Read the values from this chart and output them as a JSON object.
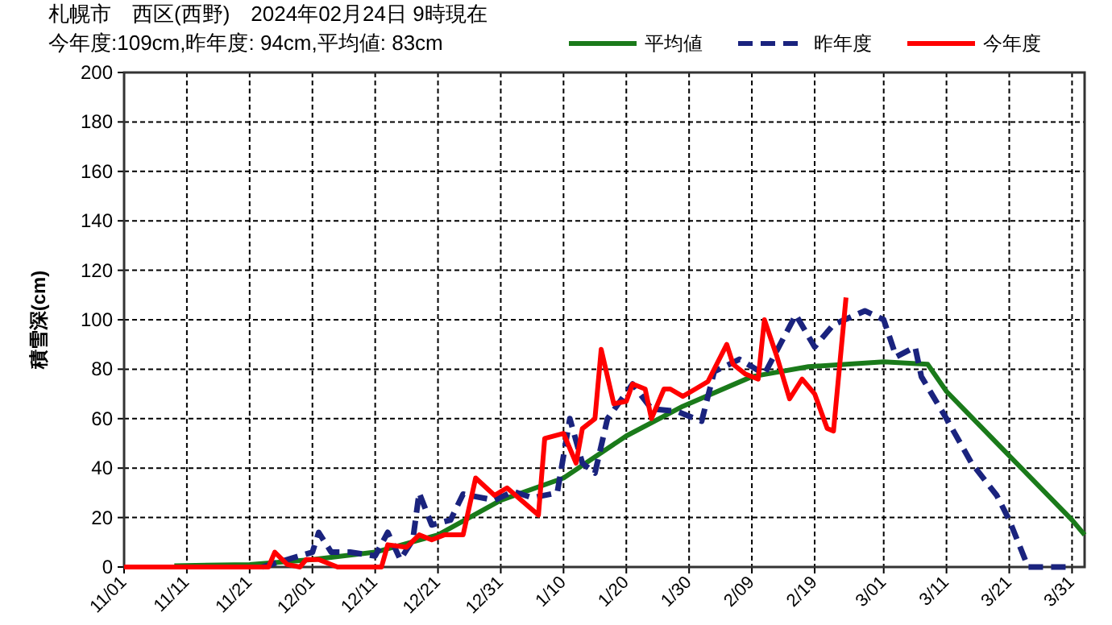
{
  "chart_data": {
    "type": "line",
    "title": "札幌市　西区(西野)　2024年02月24日 9時現在",
    "subtitle": "今年度:109cm,昨年度: 94cm,平均値: 83cm",
    "ylabel": "積雪深(cm)",
    "xlim": [
      "2023-11-01",
      "2024-04-02"
    ],
    "ylim": [
      0,
      200
    ],
    "xticks": [
      {
        "value": "2023-11-01",
        "label": "11/01"
      },
      {
        "value": "2023-11-11",
        "label": "11/11"
      },
      {
        "value": "2023-11-21",
        "label": "11/21"
      },
      {
        "value": "2023-12-01",
        "label": "12/01"
      },
      {
        "value": "2023-12-11",
        "label": "12/11"
      },
      {
        "value": "2023-12-21",
        "label": "12/21"
      },
      {
        "value": "2023-12-31",
        "label": "12/31"
      },
      {
        "value": "2024-01-10",
        "label": "1/10"
      },
      {
        "value": "2024-01-20",
        "label": "1/20"
      },
      {
        "value": "2024-01-30",
        "label": "1/30"
      },
      {
        "value": "2024-02-09",
        "label": "2/09"
      },
      {
        "value": "2024-02-19",
        "label": "2/19"
      },
      {
        "value": "2024-03-01",
        "label": "3/01"
      },
      {
        "value": "2024-03-11",
        "label": "3/11"
      },
      {
        "value": "2024-03-21",
        "label": "3/21"
      },
      {
        "value": "2024-03-31",
        "label": "3/31"
      }
    ],
    "yticks": [
      0,
      20,
      40,
      60,
      80,
      100,
      120,
      140,
      160,
      180,
      200
    ],
    "grid": true,
    "legend": "top right",
    "marker": "none",
    "series": [
      {
        "name": "平均値",
        "color": "#1a7a1a",
        "line_style": "solid",
        "x": [
          "2023-11-09",
          "2023-11-21",
          "2023-12-01",
          "2023-12-11",
          "2023-12-21",
          "2023-12-31",
          "2024-01-10",
          "2024-01-20",
          "2024-01-29",
          "2024-02-09",
          "2024-02-18",
          "2024-03-01",
          "2024-03-08",
          "2024-03-11",
          "2024-03-21",
          "2024-03-31",
          "2024-04-02"
        ],
        "values": [
          0.5,
          1,
          3,
          6,
          13,
          27,
          36,
          53,
          65,
          77,
          81,
          83,
          82,
          71,
          45,
          19,
          13
        ]
      },
      {
        "name": "昨年度",
        "color": "#1a237e",
        "line_style": "dashed",
        "x": [
          "2023-11-23",
          "2023-12-01",
          "2023-12-02",
          "2023-12-04",
          "2023-12-07",
          "2023-12-11",
          "2023-12-13",
          "2023-12-15",
          "2023-12-17",
          "2023-12-18",
          "2023-12-20",
          "2023-12-23",
          "2023-12-25",
          "2023-12-30",
          "2024-01-02",
          "2024-01-05",
          "2024-01-09",
          "2024-01-11",
          "2024-01-13",
          "2024-01-15",
          "2024-01-17",
          "2024-01-21",
          "2024-01-24",
          "2024-01-28",
          "2024-02-01",
          "2024-02-03",
          "2024-02-07",
          "2024-02-11",
          "2024-02-16",
          "2024-02-19",
          "2024-02-22",
          "2024-02-27",
          "2024-03-01",
          "2024-03-03",
          "2024-03-06",
          "2024-03-07",
          "2024-03-11",
          "2024-03-15",
          "2024-03-19",
          "2024-03-21",
          "2024-03-24",
          "2024-03-31"
        ],
        "values": [
          0,
          6,
          14,
          6,
          6,
          4.5,
          14,
          3,
          11,
          30,
          17,
          19,
          29.5,
          27,
          30.6,
          28,
          30,
          60,
          42,
          38,
          60,
          74,
          64,
          63,
          59,
          79,
          84,
          78,
          102,
          89,
          98,
          103.6,
          100,
          85,
          89,
          77,
          60,
          42,
          29,
          19,
          0,
          0
        ]
      },
      {
        "name": "今年度",
        "color": "#ff0000",
        "line_style": "solid",
        "x": [
          "2023-11-01",
          "2023-11-24",
          "2023-11-25",
          "2023-11-27",
          "2023-11-29",
          "2023-11-30",
          "2023-12-02",
          "2023-12-05",
          "2023-12-12",
          "2023-12-13",
          "2023-12-16",
          "2023-12-18",
          "2023-12-20",
          "2023-12-22",
          "2023-12-25",
          "2023-12-27",
          "2023-12-30",
          "2024-01-01",
          "2024-01-06",
          "2024-01-07",
          "2024-01-10",
          "2024-01-12",
          "2024-01-13",
          "2024-01-15",
          "2024-01-16",
          "2024-01-18",
          "2024-01-20",
          "2024-01-21",
          "2024-01-23",
          "2024-01-24",
          "2024-01-26",
          "2024-01-27",
          "2024-01-29",
          "2024-01-31",
          "2024-02-02",
          "2024-02-05",
          "2024-02-06",
          "2024-02-08",
          "2024-02-10",
          "2024-02-11",
          "2024-02-13",
          "2024-02-15",
          "2024-02-17",
          "2024-02-19",
          "2024-02-21",
          "2024-02-22",
          "2024-02-24"
        ],
        "values": [
          0,
          0,
          6,
          1,
          0,
          3,
          3,
          0,
          0,
          9,
          8,
          13,
          11,
          13,
          13,
          36,
          29,
          32,
          21,
          52,
          54,
          42,
          56,
          60,
          88,
          66,
          67,
          74,
          72,
          60,
          72,
          72,
          69,
          72,
          75,
          90,
          82,
          78,
          76,
          100,
          85,
          68,
          76,
          70,
          56,
          55,
          109
        ]
      }
    ]
  }
}
